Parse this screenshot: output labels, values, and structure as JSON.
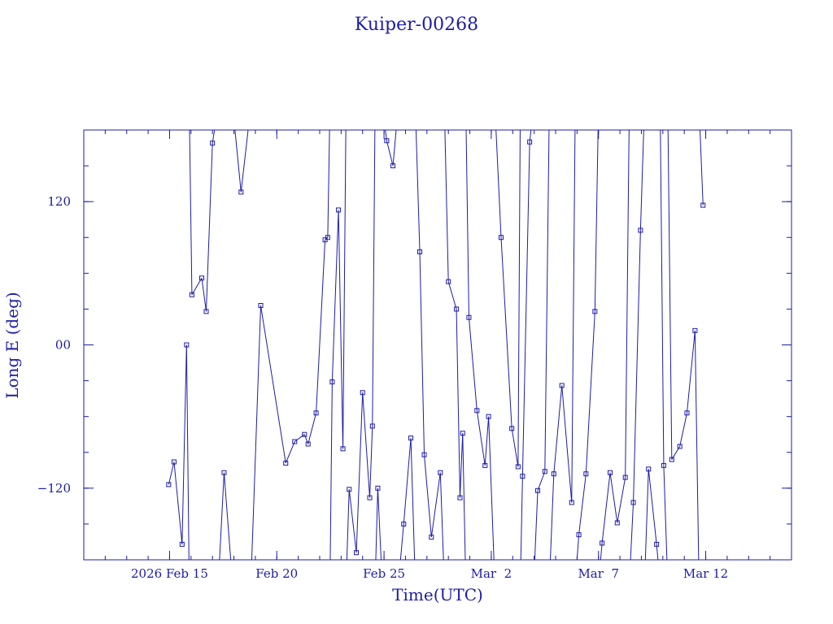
{
  "chart_data": {
    "type": "line",
    "title": "Kuiper-00268",
    "xlabel": "Time(UTC)",
    "ylabel": "Long E (deg)",
    "color": "#1c1ca8",
    "grid": false,
    "xlim": [
      "2026-02-11",
      "2026-03-16"
    ],
    "ylim": [
      -180,
      180
    ],
    "x_ticks": [
      {
        "date": "2026-02-15",
        "label": "2026 Feb 15"
      },
      {
        "date": "2026-02-20",
        "label": "Feb 20"
      },
      {
        "date": "2026-02-25",
        "label": "Feb 25"
      },
      {
        "date": "2026-03-02",
        "label": "Mar  2"
      },
      {
        "date": "2026-03-07",
        "label": "Mar  7"
      },
      {
        "date": "2026-03-12",
        "label": "Mar 12"
      }
    ],
    "y_ticks": [
      {
        "value": -120,
        "label": "−120"
      },
      {
        "value": 0,
        "label": "00"
      },
      {
        "value": 120,
        "label": "120"
      }
    ],
    "series": [
      {
        "x": [
          "2026-02-14 23:00",
          "2026-02-15 05:00",
          "2026-02-15 14:00",
          "2026-02-15 19:00",
          "2026-02-16 01:00",
          "2026-02-16 12:00",
          "2026-02-16 17:00",
          "2026-02-17 00:00",
          "2026-02-17 13:00",
          "2026-02-18 08:00",
          "2026-02-19 06:00",
          "2026-02-20 10:00",
          "2026-02-20 20:00",
          "2026-02-21 07:00",
          "2026-02-21 11:00",
          "2026-02-21 20:00",
          "2026-02-22 06:00",
          "2026-02-22 09:00",
          "2026-02-22 14:00",
          "2026-02-22 21:00",
          "2026-02-23 02:00",
          "2026-02-23 09:00",
          "2026-02-23 17:00",
          "2026-02-24 00:00",
          "2026-02-24 08:00",
          "2026-02-24 11:00",
          "2026-02-24 17:00",
          "2026-02-25 03:00",
          "2026-02-25 10:00",
          "2026-02-25 22:00",
          "2026-02-26 06:00",
          "2026-02-26 16:00",
          "2026-02-26 21:00",
          "2026-02-27 05:00",
          "2026-02-27 15:00",
          "2026-02-28 00:00",
          "2026-02-28 09:00",
          "2026-02-28 13:00",
          "2026-02-28 16:00",
          "2026-02-28 23:00",
          "2026-03-01 08:00",
          "2026-03-01 17:00",
          "2026-03-01 21:00",
          "2026-03-02 11:00",
          "2026-03-02 23:00",
          "2026-03-03 06:00",
          "2026-03-03 11:00",
          "2026-03-03 19:00",
          "2026-03-04 04:00",
          "2026-03-04 12:00",
          "2026-03-04 22:00",
          "2026-03-05 07:00",
          "2026-03-05 18:00",
          "2026-03-06 02:00",
          "2026-03-06 10:00",
          "2026-03-06 20:00",
          "2026-03-07 04:00",
          "2026-03-07 13:00",
          "2026-03-07 21:00",
          "2026-03-08 06:00",
          "2026-03-08 15:00",
          "2026-03-08 23:00",
          "2026-03-09 08:00",
          "2026-03-09 17:00",
          "2026-03-10 01:00",
          "2026-03-10 10:00",
          "2026-03-10 19:00",
          "2026-03-11 03:00",
          "2026-03-11 12:00",
          "2026-03-11 21:00"
        ],
        "y": [
          -117,
          -98,
          -167,
          0,
          42,
          56,
          28,
          169,
          -107,
          128,
          33,
          -99,
          -81,
          -75,
          -83,
          -57,
          88,
          90,
          -31,
          113,
          -87,
          -121,
          -174,
          -40,
          -128,
          -68,
          -120,
          171,
          150,
          -150,
          -78,
          78,
          -92,
          -161,
          -107,
          53,
          30,
          -128,
          -74,
          23,
          -55,
          -101,
          -60,
          90,
          -70,
          -102,
          -110,
          170,
          -122,
          -106,
          -108,
          -34,
          -132,
          -159,
          -108,
          28,
          -166,
          -107,
          -149,
          -111,
          -132,
          96,
          -104,
          -167,
          -101,
          -96,
          -85,
          -57,
          12,
          117
        ],
        "segment_breaks": [
          3,
          7,
          8,
          9,
          17,
          20,
          25,
          26,
          28,
          30,
          34,
          38,
          42,
          45,
          47,
          49,
          52,
          55,
          59,
          61,
          63,
          64,
          68
        ]
      }
    ]
  }
}
